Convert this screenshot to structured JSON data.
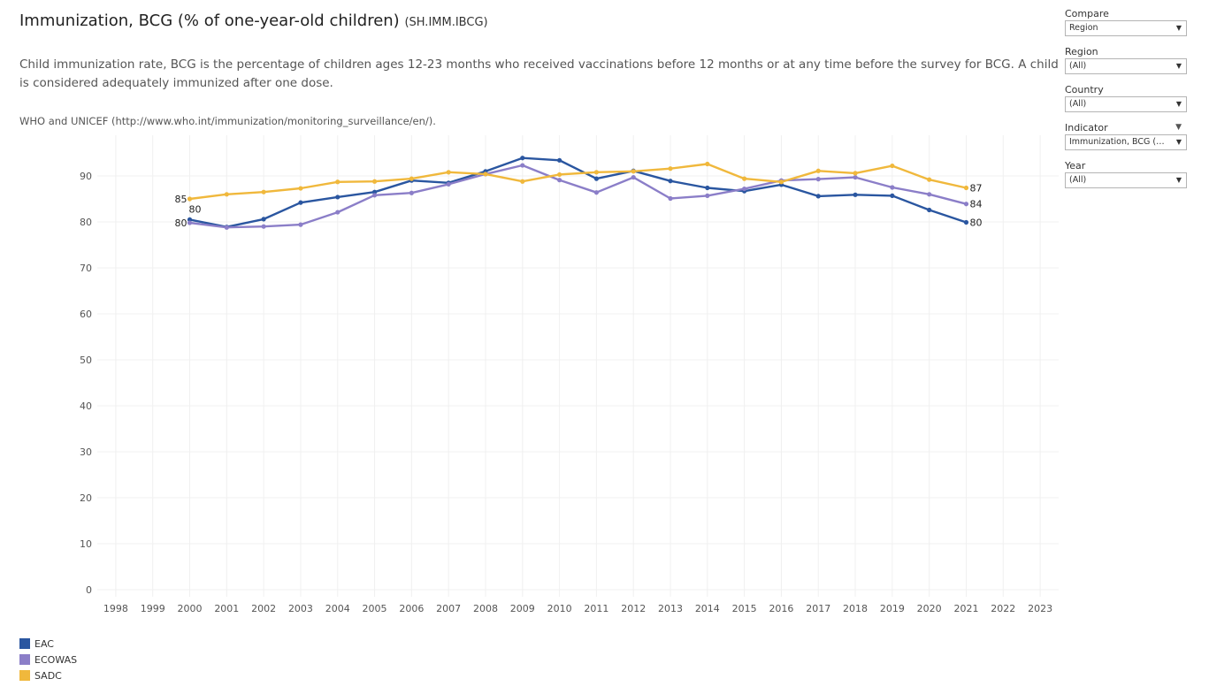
{
  "header": {
    "title": "Immunization, BCG (% of one-year-old children)",
    "code": "(SH.IMM.IBCG)",
    "description": "Child immunization rate, BCG is the percentage of children ages 12-23 months who received vaccinations before 12 months or at any time before the survey for BCG. A child is considered adequately immunized after one dose.",
    "source": "WHO and UNICEF (http://www.who.int/immunization/monitoring_surveillance/en/)."
  },
  "filters": [
    {
      "label": "Compare",
      "value": "Region",
      "menu": false
    },
    {
      "label": "Region",
      "value": "(All)",
      "menu": false
    },
    {
      "label": "Country",
      "value": "(All)",
      "menu": false
    },
    {
      "label": "Indicator",
      "value": "Immunization, BCG (% ...",
      "menu": true
    },
    {
      "label": "Year",
      "value": "(All)",
      "menu": false
    }
  ],
  "chart_data": {
    "type": "line",
    "title": "Immunization, BCG (% of one-year-old children)",
    "xlabel": "",
    "ylabel": "",
    "x_ticks": [
      1998,
      1999,
      2000,
      2001,
      2002,
      2003,
      2004,
      2005,
      2006,
      2007,
      2008,
      2009,
      2010,
      2011,
      2012,
      2013,
      2014,
      2015,
      2016,
      2017,
      2018,
      2019,
      2020,
      2021,
      2022,
      2023
    ],
    "xlim": [
      1998,
      2023
    ],
    "ylim": [
      0,
      97
    ],
    "y_ticks": [
      0,
      10,
      20,
      30,
      40,
      50,
      60,
      70,
      80,
      90
    ],
    "grid": true,
    "legend": "bottom-left",
    "x": [
      2000,
      2001,
      2002,
      2003,
      2004,
      2005,
      2006,
      2007,
      2008,
      2009,
      2010,
      2011,
      2012,
      2013,
      2014,
      2015,
      2016,
      2017,
      2018,
      2019,
      2020,
      2021
    ],
    "series": [
      {
        "name": "EAC",
        "color": "#2a56a0",
        "values": [
          80.5,
          78.9,
          80.6,
          84.2,
          85.4,
          86.5,
          89.0,
          88.5,
          91.0,
          93.9,
          93.4,
          89.4,
          91.1,
          88.9,
          87.4,
          86.7,
          88.1,
          85.6,
          85.9,
          85.7,
          82.6,
          79.9
        ],
        "labels": [
          {
            "x": 2000,
            "text": "80",
            "pos": "above"
          },
          {
            "x": 2021,
            "text": "80",
            "pos": "right"
          }
        ]
      },
      {
        "name": "ECOWAS",
        "color": "#8b7ec8",
        "values": [
          79.8,
          78.8,
          79.0,
          79.4,
          82.1,
          85.8,
          86.3,
          88.2,
          90.4,
          92.3,
          89.1,
          86.4,
          89.7,
          85.1,
          85.7,
          87.2,
          89.0,
          89.3,
          89.7,
          87.5,
          86.0,
          83.9
        ],
        "labels": [
          {
            "x": 2000,
            "text": "80",
            "pos": "left"
          },
          {
            "x": 2021,
            "text": "84",
            "pos": "right"
          }
        ]
      },
      {
        "name": "SADC",
        "color": "#f0b83c",
        "values": [
          85.0,
          86.0,
          86.5,
          87.3,
          88.7,
          88.8,
          89.4,
          90.8,
          90.4,
          88.8,
          90.3,
          90.8,
          91.0,
          91.6,
          92.6,
          89.4,
          88.7,
          91.1,
          90.6,
          92.2,
          89.2,
          87.4
        ],
        "labels": [
          {
            "x": 2000,
            "text": "85",
            "pos": "left"
          },
          {
            "x": 2021,
            "text": "87",
            "pos": "right"
          }
        ]
      }
    ]
  }
}
